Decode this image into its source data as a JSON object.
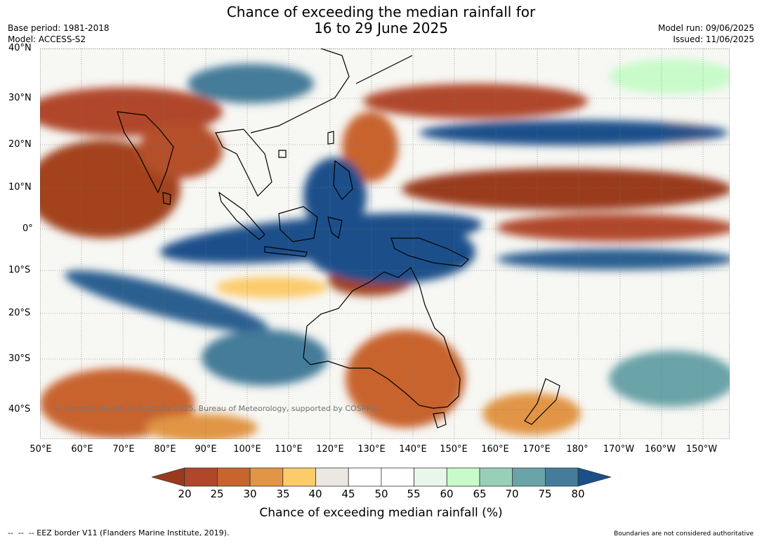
{
  "title": {
    "line1": "Chance of exceeding the median rainfall for",
    "line2": "16 to 29 June 2025"
  },
  "meta_left": {
    "base_period": "Base period: 1981-2018",
    "model": "Model: ACCESS-S2"
  },
  "meta_right": {
    "model_run": "Model run: 09/06/2025",
    "issued": "Issued: 11/06/2025"
  },
  "map": {
    "lat_labels": [
      "40°N",
      "30°N",
      "20°N",
      "10°N",
      "0°",
      "10°S",
      "20°S",
      "30°S",
      "40°S"
    ],
    "lon_labels": [
      "50°E",
      "60°E",
      "70°E",
      "80°E",
      "90°E",
      "100°E",
      "110°E",
      "120°E",
      "130°E",
      "140°E",
      "150°E",
      "160°E",
      "170°E",
      "180°",
      "170°W",
      "160°W",
      "150°W"
    ],
    "copyright": "© Commonwealth of Australia 2025, Bureau of Meteorology, supported by COSPPac"
  },
  "colorbar": {
    "ticks": [
      "20",
      "25",
      "30",
      "35",
      "40",
      "45",
      "50",
      "55",
      "60",
      "65",
      "70",
      "75",
      "80"
    ],
    "colors": [
      "#9a3a1c",
      "#b0462a",
      "#c8642e",
      "#e19545",
      "#fccb6a",
      "#ebe8e2",
      "#ffffff",
      "#ffffff",
      "#e9f6ea",
      "#c8fbc9",
      "#99cfb8",
      "#6aa3a8",
      "#457c99",
      "#1b4f8a"
    ],
    "label": "Chance of exceeding median rainfall (%)"
  },
  "footer": {
    "left": "--  --  -- EEZ border V11 (Flanders Marine Institute, 2019).",
    "right": "Boundaries are not considered authoritative"
  }
}
